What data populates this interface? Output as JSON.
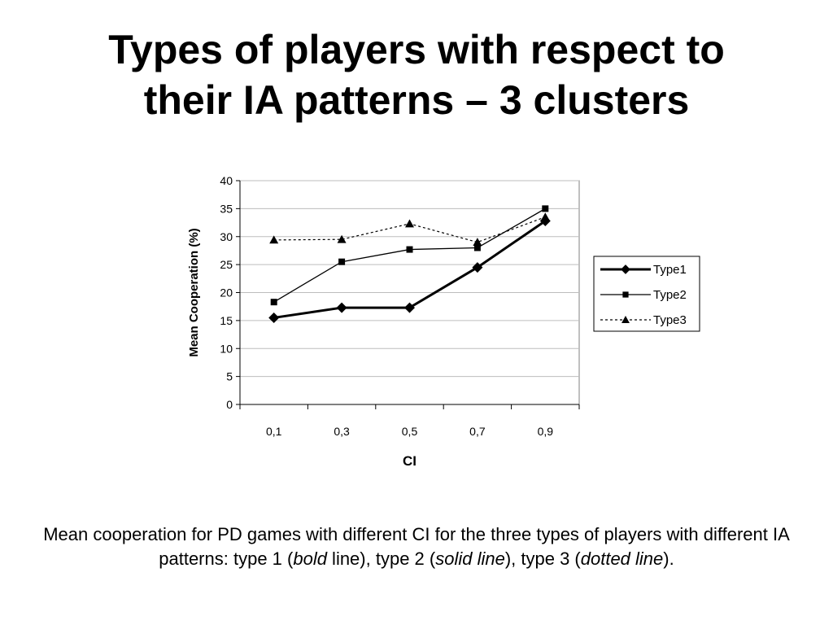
{
  "title": {
    "line1": "Types of players with respect to",
    "line2": "their IA patterns – 3 clusters"
  },
  "chart_data": {
    "type": "line",
    "categories": [
      "0,1",
      "0,3",
      "0,5",
      "0,7",
      "0,9"
    ],
    "series": [
      {
        "name": "Type1",
        "values": [
          15.5,
          17.3,
          17.3,
          24.5,
          32.8
        ],
        "style": "bold",
        "marker": "diamond"
      },
      {
        "name": "Type2",
        "values": [
          18.3,
          25.5,
          27.7,
          28.0,
          35.0
        ],
        "style": "solid",
        "marker": "square"
      },
      {
        "name": "Type3",
        "values": [
          29.4,
          29.5,
          32.3,
          29.0,
          33.5
        ],
        "style": "dotted",
        "marker": "triangle"
      }
    ],
    "xlabel": "CI",
    "ylabel": "Mean Cooperation (%)",
    "ylim": [
      0,
      40
    ],
    "yticks": [
      "0",
      "5",
      "10",
      "15",
      "20",
      "25",
      "30",
      "35",
      "40"
    ],
    "grid": true,
    "legend_position": "right"
  },
  "caption": {
    "part1": "Mean cooperation for PD games with different CI for the three types of players with different IA patterns: type 1 (",
    "em1": "bold",
    "part2": " line), type 2 (",
    "em2": "solid line",
    "part3": "), type 3 (",
    "em3": "dotted line",
    "part4": ")."
  }
}
